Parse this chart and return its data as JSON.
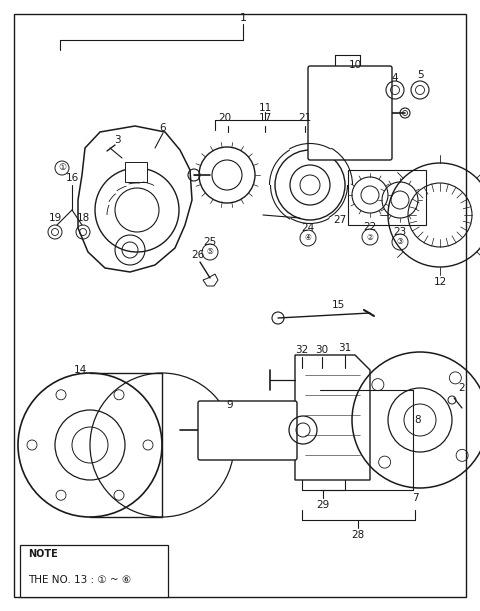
{
  "bg_color": "#ffffff",
  "line_color": "#1a1a1a",
  "text_color": "#1a1a1a",
  "fig_w": 4.8,
  "fig_h": 6.11,
  "dpi": 100,
  "note_line1": "NOTE",
  "note_line2": "THE NO. 13 : ① ~ ⑥"
}
